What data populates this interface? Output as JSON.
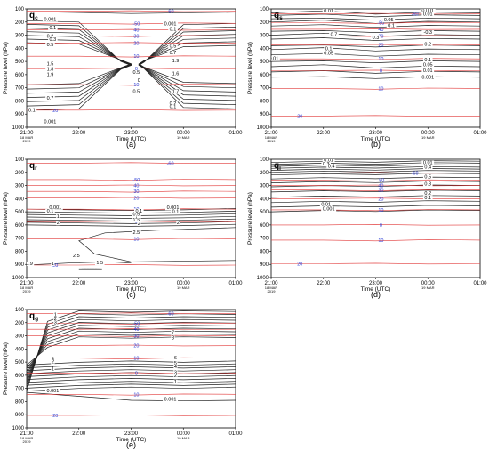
{
  "figure": {
    "time_ticks": [
      "21:00",
      "22:00",
      "23:00",
      "00:00",
      "01:00"
    ],
    "date_left": [
      "18 MAR",
      "2019"
    ],
    "date_mid": "19 MAR",
    "pressure_ticks": [
      100,
      200,
      300,
      400,
      500,
      600,
      700,
      800,
      900,
      1000
    ],
    "xlabel": "Time (UTC)",
    "ylabel": "Pressure level (hPa)"
  },
  "chart_data": [
    {
      "type": "contour",
      "panel_label": "(a)",
      "variable": "qc",
      "x_ticks": [
        "21:00",
        "22:00",
        "23:00",
        "00:00",
        "01:00"
      ],
      "y_ticks": [
        100,
        200,
        300,
        400,
        500,
        600,
        700,
        800,
        900,
        1000
      ],
      "ylim": [
        1000,
        100
      ],
      "xlabel": "Time (UTC)",
      "ylabel": "Pressure level (hPa)",
      "temperature_contours": [
        {
          "label": "-60",
          "level": 118
        },
        {
          "label": "-50",
          "level": 210
        },
        {
          "label": "40",
          "level": 260
        },
        {
          "label": "30",
          "level": 305
        },
        {
          "label": "20",
          "level": 360
        },
        {
          "label": "10",
          "level": 460
        },
        {
          "label": "0",
          "level": 555
        },
        {
          "label": "10",
          "level": 675
        },
        {
          "label": "20",
          "level": 870
        }
      ],
      "contour_labels": [
        {
          "text": "0.001",
          "time": 21.45,
          "level": 190
        },
        {
          "text": "0.1",
          "time": 21.5,
          "level": 255
        },
        {
          "text": "0.2",
          "time": 21.45,
          "level": 320
        },
        {
          "text": "0.3",
          "time": 21.5,
          "level": 345
        },
        {
          "text": "0.5",
          "time": 21.45,
          "level": 385
        },
        {
          "text": "1.5",
          "time": 21.45,
          "level": 530
        },
        {
          "text": "1.8",
          "time": 21.45,
          "level": 570
        },
        {
          "text": "1.9",
          "time": 21.45,
          "level": 610
        },
        {
          "text": "0.5",
          "time": 23.1,
          "level": 595
        },
        {
          "text": "0",
          "time": 23.15,
          "level": 655
        },
        {
          "text": "0.5",
          "time": 23.1,
          "level": 740
        },
        {
          "text": "0.001",
          "time": 23.75,
          "level": 225
        },
        {
          "text": "0.1",
          "time": 23.8,
          "level": 265
        },
        {
          "text": "0.5",
          "time": 23.8,
          "level": 395
        },
        {
          "text": "0.7",
          "time": 23.8,
          "level": 445
        },
        {
          "text": "1.9",
          "time": 23.85,
          "level": 505
        },
        {
          "text": "1.6",
          "time": 23.85,
          "level": 605
        },
        {
          "text": "1.7",
          "time": 23.85,
          "level": 740
        },
        {
          "text": "0.7",
          "time": 21.45,
          "level": 790
        },
        {
          "text": "0.1",
          "time": 21.1,
          "level": 880
        },
        {
          "text": "0.001",
          "time": 21.45,
          "level": 970
        },
        {
          "text": "0.2",
          "time": 23.8,
          "level": 830
        },
        {
          "text": "0.1",
          "time": 23.8,
          "level": 855
        }
      ]
    },
    {
      "type": "contour",
      "panel_label": "(b)",
      "variable": "qs",
      "x_ticks": [
        "21:00",
        "22:00",
        "23:00",
        "00:00",
        "01:00"
      ],
      "y_ticks": [
        100,
        200,
        300,
        400,
        500,
        600,
        700,
        800,
        900,
        1000
      ],
      "ylim": [
        1000,
        100
      ],
      "xlabel": "Time (UTC)",
      "ylabel": "Pressure level (hPa)",
      "temperature_contours": [
        {
          "label": "-60",
          "level": 138
        },
        {
          "label": "-50",
          "level": 205
        },
        {
          "label": "40",
          "level": 255
        },
        {
          "label": "30",
          "level": 305
        },
        {
          "label": "20",
          "level": 375
        },
        {
          "label": "10",
          "level": 480
        },
        {
          "label": "0",
          "level": 570
        },
        {
          "label": "10",
          "level": 705
        },
        {
          "label": "20",
          "level": 915
        }
      ],
      "contour_labels": [
        {
          "text": "0.01",
          "time": 22.1,
          "level": 128
        },
        {
          "text": "0.05",
          "time": 23.25,
          "level": 195
        },
        {
          "text": "0.1",
          "time": 23.3,
          "level": 238
        },
        {
          "text": "0.001",
          "time": 24.0,
          "level": 125
        },
        {
          "text": "0.01",
          "time": 24.0,
          "level": 150
        },
        {
          "text": "0.7",
          "time": 22.2,
          "level": 305
        },
        {
          "text": "0.3",
          "time": 23.0,
          "level": 330
        },
        {
          "text": "-0.3",
          "time": 24.0,
          "level": 290
        },
        {
          "text": "0.2",
          "time": 24.0,
          "level": 380
        },
        {
          "text": "0.1",
          "time": 22.1,
          "level": 415
        },
        {
          "text": "0.05",
          "time": 22.1,
          "level": 450
        },
        {
          "text": "0.1",
          "time": 24.0,
          "level": 500
        },
        {
          "text": "0.05",
          "time": 24.0,
          "level": 535
        },
        {
          "text": "0.01",
          "time": 24.0,
          "level": 580
        },
        {
          "text": "0.001",
          "time": 24.0,
          "level": 630
        },
        {
          "text": "0.01",
          "time": 21.05,
          "level": 490
        }
      ]
    },
    {
      "type": "contour",
      "panel_label": "(c)",
      "variable": "qr",
      "x_ticks": [
        "21:00",
        "22:00",
        "23:00",
        "00:00",
        "01:00"
      ],
      "y_ticks": [
        100,
        200,
        300,
        400,
        500,
        600,
        700,
        800,
        900,
        1000
      ],
      "ylim": [
        1000,
        100
      ],
      "xlabel": "Time (UTC)",
      "ylabel": "Pressure level (hPa)",
      "temperature_contours": [
        {
          "label": "-60",
          "level": 130
        },
        {
          "label": "-50",
          "level": 255
        },
        {
          "label": "40",
          "level": 300
        },
        {
          "label": "30",
          "level": 345
        },
        {
          "label": "20",
          "level": 395
        },
        {
          "label": "10",
          "level": 480
        },
        {
          "label": "0",
          "level": 575
        },
        {
          "label": "10",
          "level": 705
        },
        {
          "label": "20",
          "level": 905
        }
      ],
      "contour_labels": [
        {
          "text": "0.001",
          "time": 21.55,
          "level": 478
        },
        {
          "text": "0.1",
          "time": 21.45,
          "level": 505
        },
        {
          "text": "1",
          "time": 21.6,
          "level": 545
        },
        {
          "text": "2",
          "time": 21.6,
          "level": 595
        },
        {
          "text": "2.5",
          "time": 23.1,
          "level": 668
        },
        {
          "text": "2",
          "time": 23.15,
          "level": 600
        },
        {
          "text": "1.5",
          "time": 23.1,
          "level": 575
        },
        {
          "text": "1",
          "time": 23.1,
          "level": 550
        },
        {
          "text": "0.5",
          "time": 23.1,
          "level": 530
        },
        {
          "text": "0.1",
          "time": 23.15,
          "level": 505
        },
        {
          "text": "0.001",
          "time": 23.8,
          "level": 480
        },
        {
          "text": "0.1",
          "time": 23.85,
          "level": 510
        },
        {
          "text": "2",
          "time": 23.9,
          "level": 595
        },
        {
          "text": "2.5",
          "time": 21.95,
          "level": 845
        },
        {
          "text": "1.5",
          "time": 22.4,
          "level": 900
        },
        {
          "text": "1",
          "time": 21.5,
          "level": 905
        },
        {
          "text": "0.9",
          "time": 21.05,
          "level": 905
        }
      ]
    },
    {
      "type": "contour",
      "panel_label": "(d)",
      "variable": "qi",
      "x_ticks": [
        "21:00",
        "22:00",
        "23:00",
        "00:00",
        "01:00"
      ],
      "y_ticks": [
        100,
        200,
        300,
        400,
        500,
        600,
        700,
        800,
        900,
        1000
      ],
      "ylim": [
        1000,
        100
      ],
      "xlabel": "Time (UTC)",
      "ylabel": "Pressure level (hPa)",
      "temperature_contours": [
        {
          "label": "-60",
          "level": 205
        },
        {
          "label": "-50",
          "level": 260
        },
        {
          "label": "40",
          "level": 300
        },
        {
          "label": "30",
          "level": 335
        },
        {
          "label": "20",
          "level": 400
        },
        {
          "label": "10",
          "level": 485
        },
        {
          "label": "0",
          "level": 600
        },
        {
          "label": "10",
          "level": 715
        },
        {
          "label": "20",
          "level": 895
        }
      ],
      "contour_labels": [
        {
          "text": "0.01",
          "time": 22.1,
          "level": 118
        },
        {
          "text": "0.3",
          "time": 22.05,
          "level": 148
        },
        {
          "text": "0.4",
          "time": 22.15,
          "level": 165
        },
        {
          "text": "0.01",
          "time": 24.0,
          "level": 138
        },
        {
          "text": "0.4",
          "time": 24.0,
          "level": 170
        },
        {
          "text": "0.5",
          "time": 24.0,
          "level": 245
        },
        {
          "text": "0.3",
          "time": 24.0,
          "level": 300
        },
        {
          "text": "0.2",
          "time": 24.0,
          "level": 370
        },
        {
          "text": "0.1",
          "time": 24.0,
          "level": 405
        },
        {
          "text": "0.01",
          "time": 22.05,
          "level": 455
        },
        {
          "text": "0.001",
          "time": 22.1,
          "level": 490
        }
      ]
    },
    {
      "type": "contour",
      "panel_label": "(e)",
      "variable": "qg",
      "x_ticks": [
        "21:00",
        "22:00",
        "23:00",
        "00:00",
        "01:00"
      ],
      "y_ticks": [
        100,
        200,
        300,
        400,
        500,
        600,
        700,
        800,
        900,
        1000
      ],
      "ylim": [
        1000,
        100
      ],
      "xlabel": "Time (UTC)",
      "ylabel": "Pressure level (hPa)",
      "temperature_contours": [
        {
          "label": "-60",
          "level": 130
        },
        {
          "label": "-50",
          "level": 205
        },
        {
          "label": "40",
          "level": 250
        },
        {
          "label": "30",
          "level": 300
        },
        {
          "label": "20",
          "level": 375
        },
        {
          "label": "10",
          "level": 470
        },
        {
          "label": "0",
          "level": 585
        },
        {
          "label": "10",
          "level": 745
        },
        {
          "label": "20",
          "level": 905
        }
      ],
      "contour_labels": [
        {
          "text": "0.001",
          "time": 21.5,
          "level": 105
        },
        {
          "text": "1",
          "time": 21.55,
          "level": 150
        },
        {
          "text": "2",
          "time": 21.55,
          "level": 180
        },
        {
          "text": "3",
          "time": 21.55,
          "level": 210
        },
        {
          "text": "7",
          "time": 23.8,
          "level": 285
        },
        {
          "text": "8",
          "time": 23.8,
          "level": 325
        },
        {
          "text": "3",
          "time": 21.5,
          "level": 490
        },
        {
          "text": "2",
          "time": 21.5,
          "level": 510
        },
        {
          "text": "1",
          "time": 21.5,
          "level": 565
        },
        {
          "text": "6",
          "time": 23.85,
          "level": 480
        },
        {
          "text": "5",
          "time": 23.85,
          "level": 520
        },
        {
          "text": "4",
          "time": 23.85,
          "level": 545
        },
        {
          "text": "3",
          "time": 23.85,
          "level": 590
        },
        {
          "text": "2",
          "time": 23.85,
          "level": 615
        },
        {
          "text": "1",
          "time": 23.85,
          "level": 660
        },
        {
          "text": "0.001",
          "time": 21.5,
          "level": 730
        },
        {
          "text": "0.001",
          "time": 23.75,
          "level": 795
        }
      ]
    }
  ]
}
